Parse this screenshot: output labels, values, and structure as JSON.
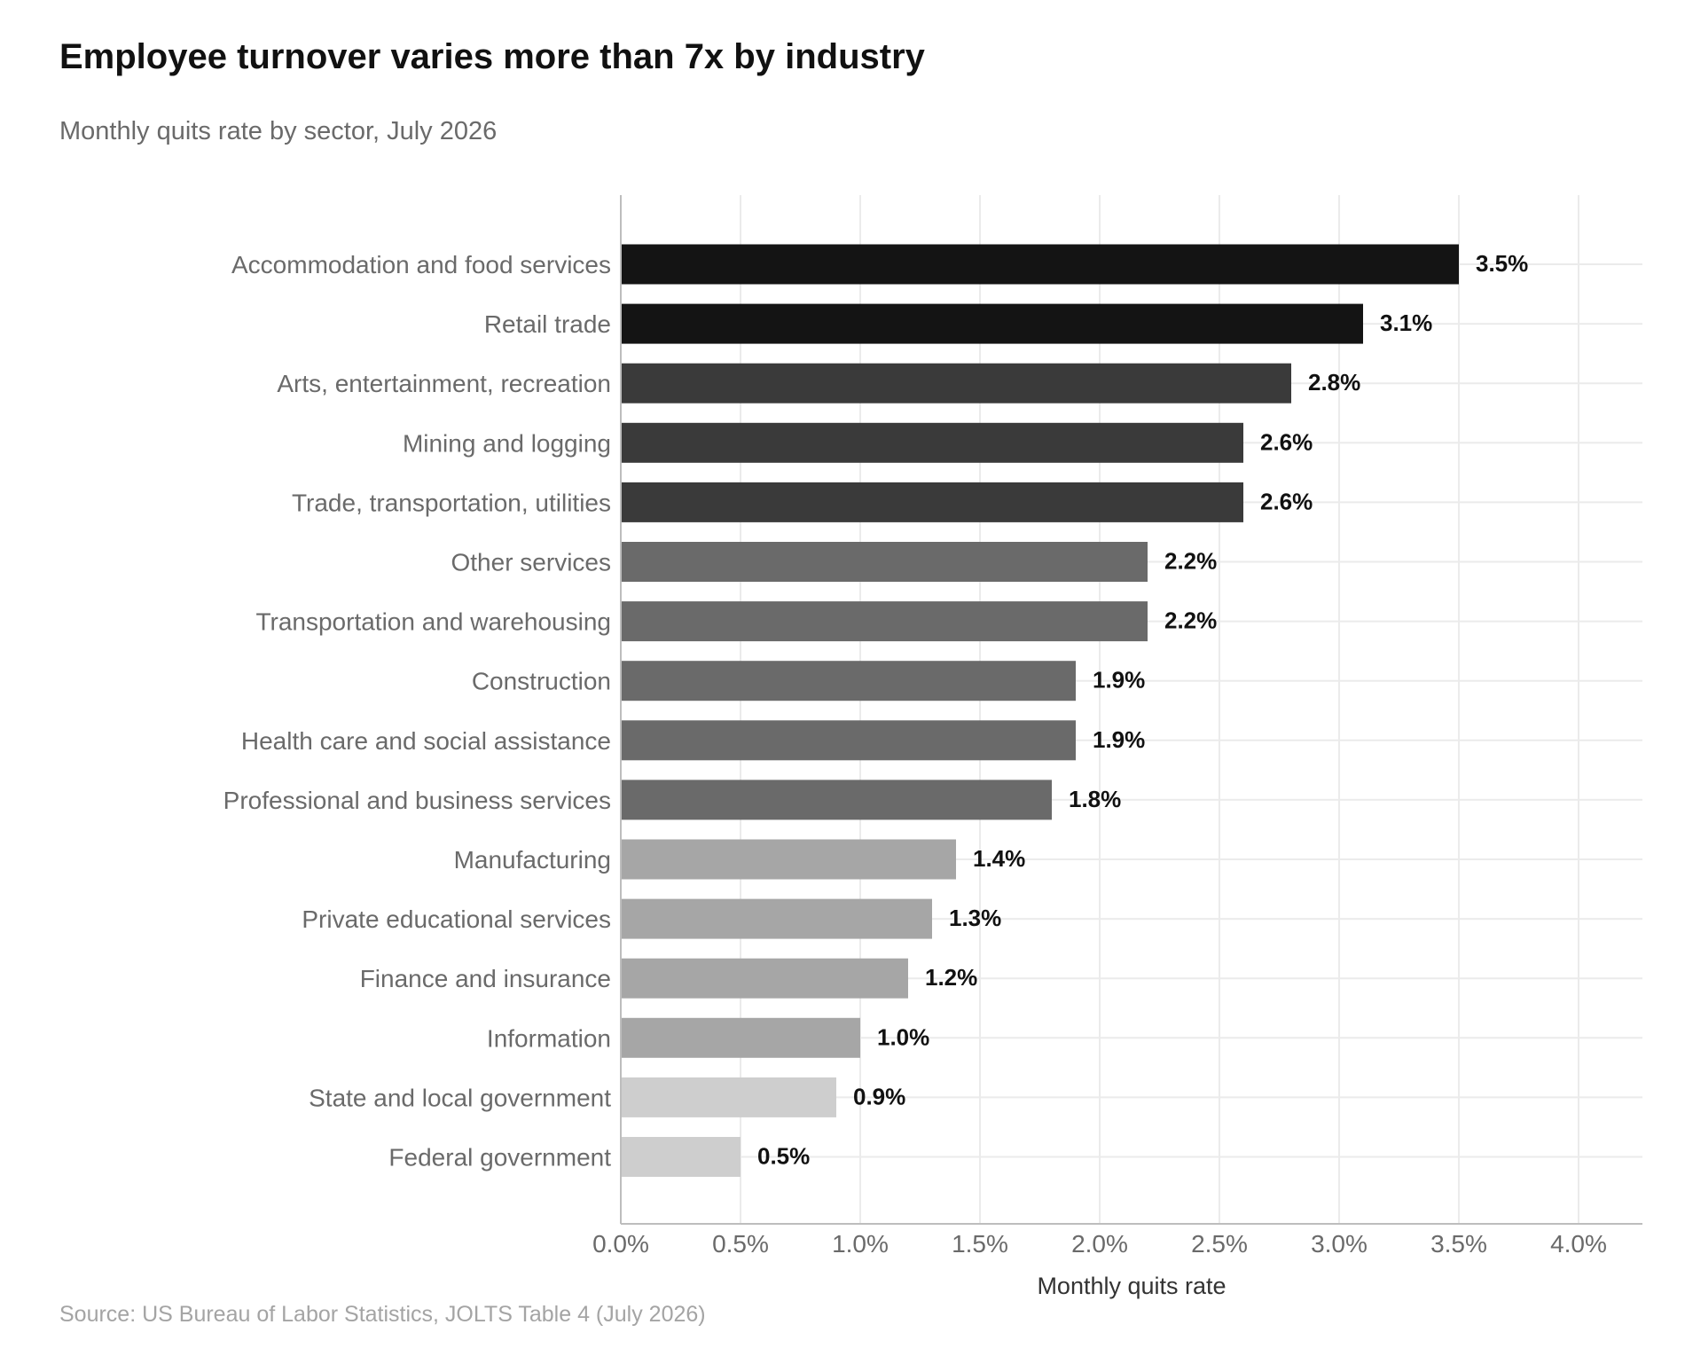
{
  "title": "Employee turnover varies more than 7x by industry",
  "subtitle": "Monthly quits rate by sector, July 2026",
  "source": "Source: US Bureau of Labor Statistics, JOLTS Table 4 (July 2026)",
  "chart_data": {
    "type": "bar",
    "orientation": "horizontal",
    "title": "Employee turnover varies more than 7x by industry",
    "subtitle": "Monthly quits rate by sector, July 2026",
    "xlabel": "Monthly quits rate",
    "ylabel": "",
    "xlim": [
      0,
      4.3
    ],
    "x_ticks": [
      0,
      0.5,
      1.0,
      1.5,
      2.0,
      2.5,
      3.0,
      3.5,
      4.0
    ],
    "x_tick_labels": [
      "0.0%",
      "0.5%",
      "1.0%",
      "1.5%",
      "2.0%",
      "2.5%",
      "3.0%",
      "3.5%",
      "4.0%"
    ],
    "grid": true,
    "legend": "none",
    "categories": [
      "Accommodation and food services",
      "Retail trade",
      "Arts, entertainment, recreation",
      "Mining and logging",
      "Trade, transportation, utilities",
      "Other services",
      "Transportation and warehousing",
      "Construction",
      "Health care and social assistance",
      "Professional and business services",
      "Manufacturing",
      "Private educational services",
      "Finance and insurance",
      "Information",
      "State and local government",
      "Federal government"
    ],
    "values": [
      3.5,
      3.1,
      2.8,
      2.6,
      2.6,
      2.2,
      2.2,
      1.9,
      1.9,
      1.8,
      1.4,
      1.3,
      1.2,
      1.0,
      0.9,
      0.5
    ],
    "value_labels": [
      "3.5%",
      "3.1%",
      "2.8%",
      "2.6%",
      "2.6%",
      "2.2%",
      "2.2%",
      "1.9%",
      "1.9%",
      "1.8%",
      "1.4%",
      "1.3%",
      "1.2%",
      "1.0%",
      "0.9%",
      "0.5%"
    ],
    "bar_colors": [
      "#141414",
      "#141414",
      "#3a3a3a",
      "#3a3a3a",
      "#3a3a3a",
      "#6a6a6a",
      "#6a6a6a",
      "#6a6a6a",
      "#6a6a6a",
      "#6a6a6a",
      "#a6a6a6",
      "#a6a6a6",
      "#a6a6a6",
      "#a6a6a6",
      "#cecece",
      "#cecece"
    ],
    "colors": {
      "grid": "#ebebeb",
      "axis": "#bdbdbd",
      "category_label": "#6a6a6a",
      "tick_label": "#6a6a6a",
      "axis_title": "#333333",
      "value_label": "#111111"
    }
  }
}
